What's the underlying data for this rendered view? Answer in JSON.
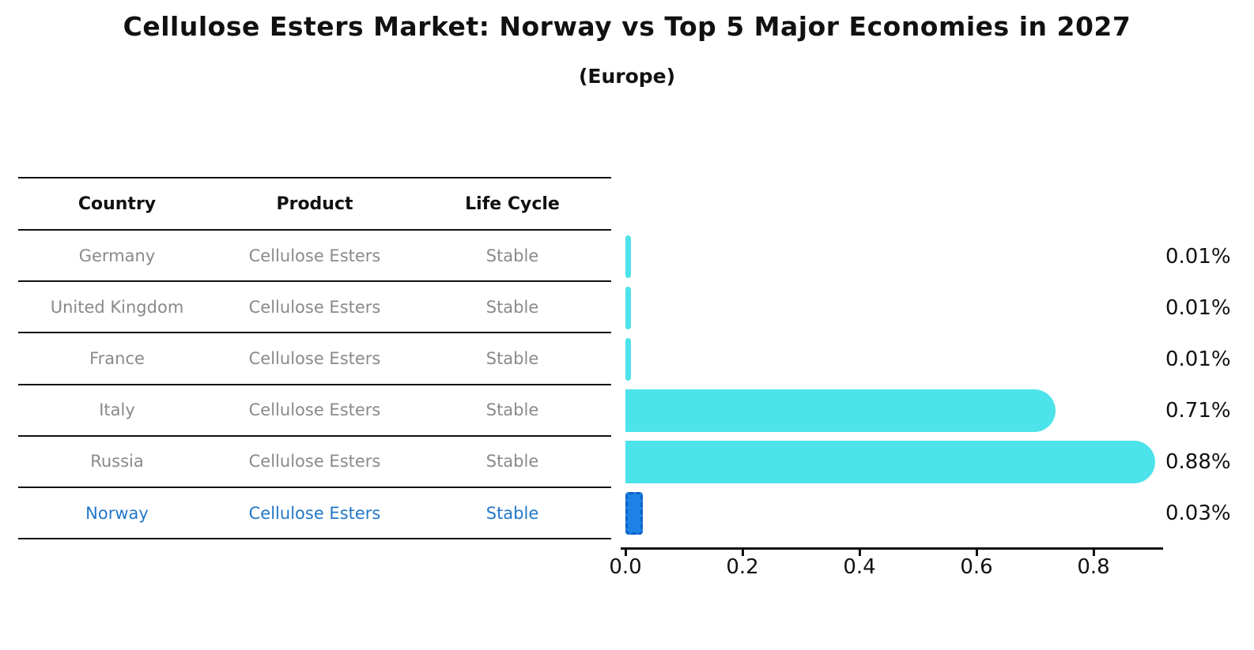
{
  "title": "Cellulose Esters Market: Norway vs Top 5 Major Economies in 2027",
  "subtitle": "(Europe)",
  "table": {
    "headers": [
      "Country",
      "Product",
      "Life Cycle"
    ],
    "rows": [
      {
        "country": "Germany",
        "product": "Cellulose Esters",
        "life_cycle": "Stable"
      },
      {
        "country": "United Kingdom",
        "product": "Cellulose Esters",
        "life_cycle": "Stable"
      },
      {
        "country": "France",
        "product": "Cellulose Esters",
        "life_cycle": "Stable"
      },
      {
        "country": "Italy",
        "product": "Cellulose Esters",
        "life_cycle": "Stable"
      },
      {
        "country": "Russia",
        "product": "Cellulose Esters",
        "life_cycle": "Stable"
      },
      {
        "country": "Norway",
        "product": "Cellulose Esters",
        "life_cycle": "Stable"
      }
    ]
  },
  "chart_data": {
    "type": "bar",
    "orientation": "horizontal",
    "title": "Cellulose Esters Market: Norway vs Top 5 Major Economies in 2027",
    "subtitle": "(Europe)",
    "categories": [
      "Germany",
      "United Kingdom",
      "France",
      "Italy",
      "Russia",
      "Norway"
    ],
    "values": [
      0.01,
      0.01,
      0.01,
      0.71,
      0.88,
      0.03
    ],
    "value_labels": [
      "0.01%",
      "0.01%",
      "0.01%",
      "0.71%",
      "0.88%",
      "0.03%"
    ],
    "x_ticks": [
      0.0,
      0.2,
      0.4,
      0.6,
      0.8
    ],
    "x_tick_labels": [
      "0.0",
      "0.2",
      "0.4",
      "0.6",
      "0.8"
    ],
    "xlim": [
      0,
      0.92
    ],
    "xlabel": "",
    "ylabel": "",
    "grid": false,
    "legend": "none",
    "bar_color": "#4de3ea",
    "highlight_bar_color": "#1e82e6",
    "highlight_edge_color": "#0f62c4",
    "highlight_index": 5,
    "highlight_text_color": "#2377c8",
    "unit": "%"
  }
}
